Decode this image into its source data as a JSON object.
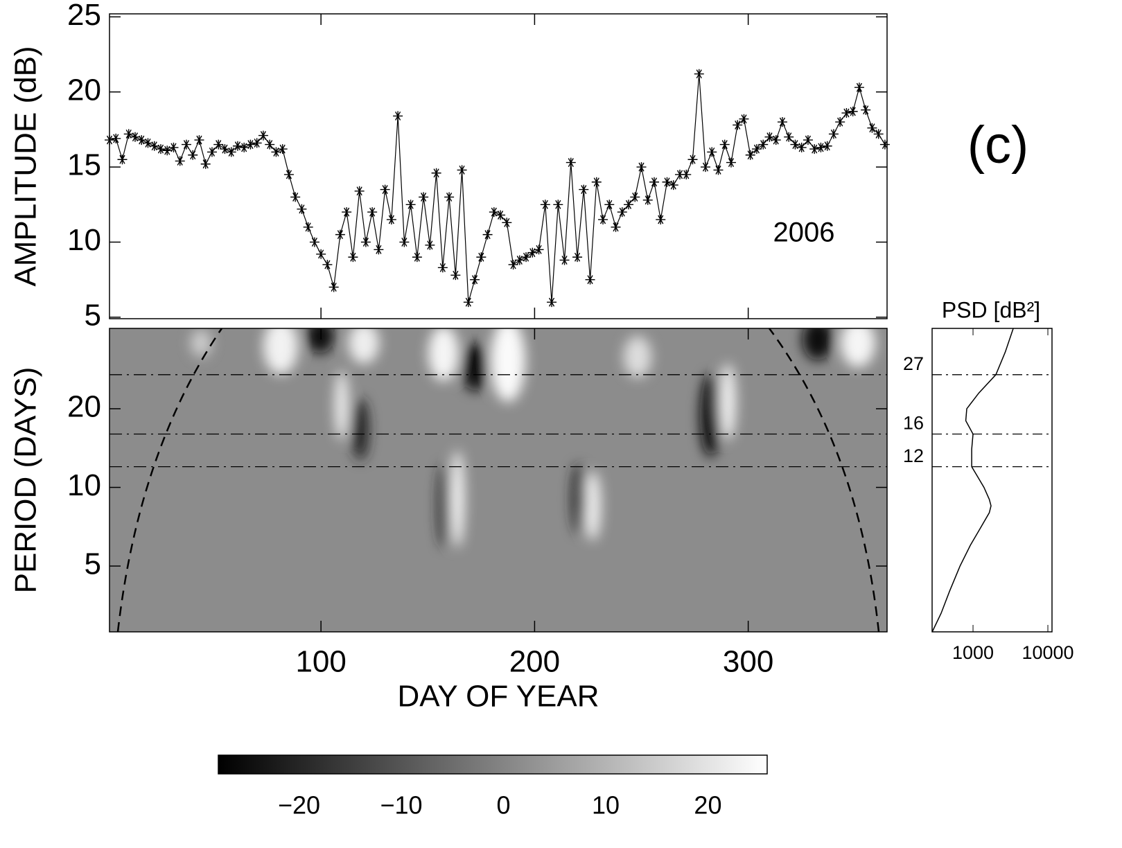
{
  "panel_label": "(c)",
  "chart_data": [
    {
      "type": "line",
      "ylabel": "AMPLITUDE (dB)",
      "annotations": [
        "2006"
      ],
      "xlim": [
        1,
        365
      ],
      "ylim": [
        4.9,
        25.2
      ],
      "yticks": [
        5,
        10,
        15,
        20,
        25
      ],
      "color": "#000000",
      "marker": "asterisk",
      "x": [
        1,
        4,
        7,
        10,
        13,
        16,
        19,
        22,
        25,
        28,
        31,
        34,
        37,
        40,
        43,
        46,
        49,
        52,
        55,
        58,
        61,
        64,
        67,
        70,
        73,
        76,
        79,
        82,
        85,
        88,
        91,
        94,
        97,
        100,
        103,
        106,
        109,
        112,
        115,
        118,
        121,
        124,
        127,
        130,
        133,
        136,
        139,
        142,
        145,
        148,
        151,
        154,
        157,
        160,
        163,
        166,
        169,
        172,
        175,
        178,
        181,
        184,
        187,
        190,
        193,
        196,
        199,
        202,
        205,
        208,
        211,
        214,
        217,
        220,
        223,
        226,
        229,
        232,
        235,
        238,
        241,
        244,
        247,
        250,
        253,
        256,
        259,
        262,
        265,
        268,
        271,
        274,
        277,
        280,
        283,
        286,
        289,
        292,
        295,
        298,
        301,
        304,
        307,
        310,
        313,
        316,
        319,
        322,
        325,
        328,
        331,
        334,
        337,
        340,
        343,
        346,
        349,
        352,
        355,
        358,
        361,
        364
      ],
      "values": [
        16.8,
        16.9,
        15.5,
        17.2,
        17.0,
        16.8,
        16.6,
        16.4,
        16.2,
        16.1,
        16.3,
        15.4,
        16.5,
        15.8,
        16.8,
        15.2,
        16.0,
        16.5,
        16.2,
        16.0,
        16.4,
        16.3,
        16.5,
        16.6,
        17.1,
        16.5,
        16.0,
        16.2,
        14.5,
        13.0,
        12.2,
        11.0,
        10.0,
        9.2,
        8.5,
        7.0,
        10.5,
        12.0,
        9.0,
        13.4,
        10.0,
        12.0,
        9.5,
        13.5,
        11.5,
        18.4,
        10.0,
        12.5,
        9.0,
        13.0,
        9.8,
        14.6,
        8.3,
        13.0,
        7.8,
        14.8,
        6.0,
        7.5,
        9.0,
        10.5,
        12.0,
        11.8,
        11.3,
        8.5,
        8.8,
        9.0,
        9.3,
        9.5,
        12.5,
        6.0,
        12.5,
        8.8,
        15.3,
        9.0,
        13.5,
        7.5,
        14.0,
        11.5,
        12.5,
        11.0,
        12.0,
        12.5,
        13.0,
        15.0,
        12.8,
        14.0,
        11.5,
        14.0,
        13.8,
        14.5,
        14.5,
        15.5,
        21.2,
        15.0,
        16.0,
        14.8,
        16.5,
        15.3,
        17.8,
        18.2,
        15.8,
        16.2,
        16.5,
        17.0,
        16.8,
        18.0,
        17.0,
        16.5,
        16.3,
        16.8,
        16.2,
        16.3,
        16.4,
        17.2,
        18.0,
        18.6,
        18.7,
        20.3,
        18.8,
        17.6,
        17.2,
        16.5
      ]
    },
    {
      "type": "heatmap",
      "xlabel": "DAY OF YEAR",
      "ylabel": "PERIOD (DAYS)",
      "xlim": [
        1,
        365
      ],
      "xticks": [
        100,
        200,
        300
      ],
      "ylim": [
        2.8,
        40.6
      ],
      "yticks": [
        5,
        10,
        20
      ],
      "log_y": true
    },
    {
      "type": "line",
      "title": "PSD [dB²]",
      "log_x": true,
      "log_y": true,
      "xlim": [
        284,
        11360
      ],
      "xticks": [
        1000,
        10000
      ],
      "ylim": [
        2.8,
        40.6
      ],
      "yticks": [
        27,
        16,
        12
      ],
      "color": "#000000",
      "y": [
        40.6,
        33,
        27,
        23,
        20,
        18,
        16,
        14,
        12,
        11,
        10,
        9,
        8.5,
        8,
        7,
        6,
        5,
        4,
        3.3,
        2.8
      ],
      "values": [
        3450,
        2700,
        2020,
        1200,
        825,
        800,
        1000,
        960,
        960,
        1150,
        1400,
        1650,
        1740,
        1650,
        1260,
        920,
        670,
        485,
        375,
        285
      ]
    },
    {
      "type": "colorbar",
      "cmap": [
        "#000000",
        "#ffffff"
      ],
      "lim": [
        -27.9,
        25.8
      ],
      "ticks": [
        {
          "value": -20,
          "label": "−20"
        },
        {
          "value": -10,
          "label": "−10"
        },
        0,
        10,
        20
      ]
    }
  ]
}
